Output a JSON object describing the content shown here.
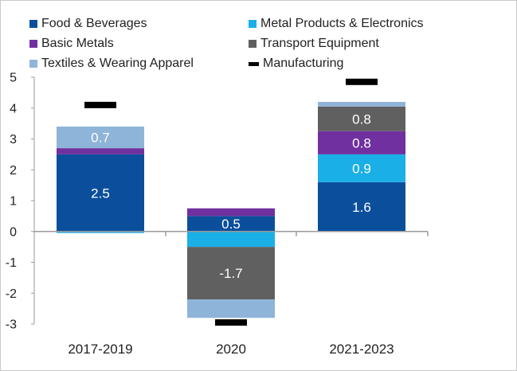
{
  "chart_data": {
    "type": "bar",
    "stacked": true,
    "categories": [
      "2017-2019",
      "2020",
      "2021-2023"
    ],
    "ylim": [
      -3,
      5
    ],
    "yticks": [
      -3,
      -2,
      -1,
      0,
      1,
      2,
      3,
      4,
      5
    ],
    "series": [
      {
        "name": "Food & Beverages",
        "color": "#0b4f9c",
        "values": [
          2.5,
          0.5,
          1.6
        ]
      },
      {
        "name": "Metal Products & Electronics",
        "color": "#1aafe6",
        "values": [
          -0.05,
          -0.5,
          0.9
        ]
      },
      {
        "name": "Basic Metals",
        "color": "#7030a0",
        "values": [
          0.2,
          0.25,
          0.75
        ]
      },
      {
        "name": "Transport Equipment",
        "color": "#606060",
        "values": [
          0.0,
          -1.7,
          0.8
        ]
      },
      {
        "name": "Textiles & Wearing Apparel",
        "color": "#8fb4d9",
        "values": [
          0.7,
          -0.6,
          0.15
        ]
      }
    ],
    "line_series": {
      "name": "Manufacturing",
      "color": "#000000",
      "values": [
        4.1,
        -2.95,
        4.85
      ]
    },
    "data_labels": [
      {
        "category": 0,
        "series": 0,
        "text": "2.5"
      },
      {
        "category": 0,
        "series": 4,
        "text": "0.7"
      },
      {
        "category": 1,
        "series": 0,
        "text": "0.5"
      },
      {
        "category": 1,
        "series": 3,
        "text": "-1.7"
      },
      {
        "category": 2,
        "series": 0,
        "text": "1.6"
      },
      {
        "category": 2,
        "series": 1,
        "text": "0.9"
      },
      {
        "category": 2,
        "series": 2,
        "text": "0.8"
      },
      {
        "category": 2,
        "series": 3,
        "text": "0.8"
      }
    ],
    "legend": [
      "Food & Beverages",
      "Metal Products & Electronics",
      "Basic Metals",
      "Transport Equipment",
      "Textiles & Wearing Apparel",
      "Manufacturing"
    ],
    "legend_position": "top",
    "title": "",
    "xlabel": "",
    "ylabel": ""
  }
}
